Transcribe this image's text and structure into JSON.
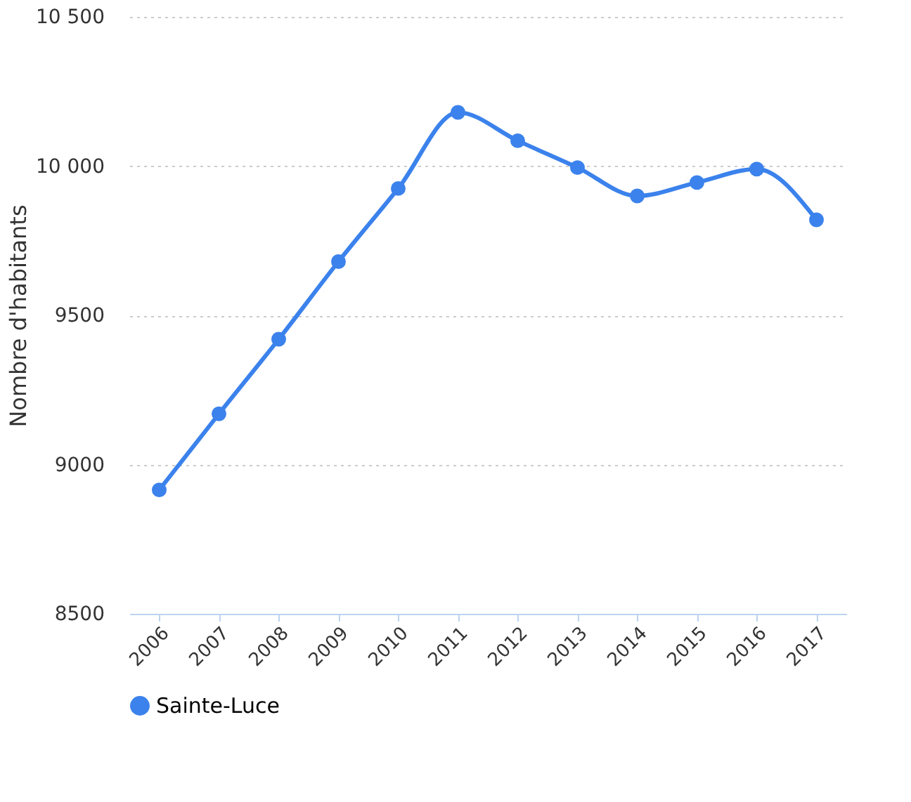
{
  "chart_data": {
    "type": "line",
    "ylabel": "Nombre d'habitants",
    "categories": [
      "2006",
      "2007",
      "2008",
      "2009",
      "2010",
      "2011",
      "2012",
      "2013",
      "2014",
      "2015",
      "2016",
      "2017"
    ],
    "series": [
      {
        "name": "Sainte-Luce",
        "color": "#3b82ec",
        "values": [
          8915,
          9170,
          9420,
          9680,
          9925,
          10180,
          10085,
          9995,
          9900,
          9945,
          9990,
          9820
        ]
      }
    ],
    "ylim": [
      8500,
      10500
    ],
    "yticks": [
      8500,
      9000,
      9500,
      {
        "value": 10000,
        "label": "10 000"
      },
      {
        "value": 10500,
        "label": "10 500"
      }
    ],
    "grid": "y",
    "legend": "bottom",
    "marker": "circle",
    "line_style": "solid"
  }
}
